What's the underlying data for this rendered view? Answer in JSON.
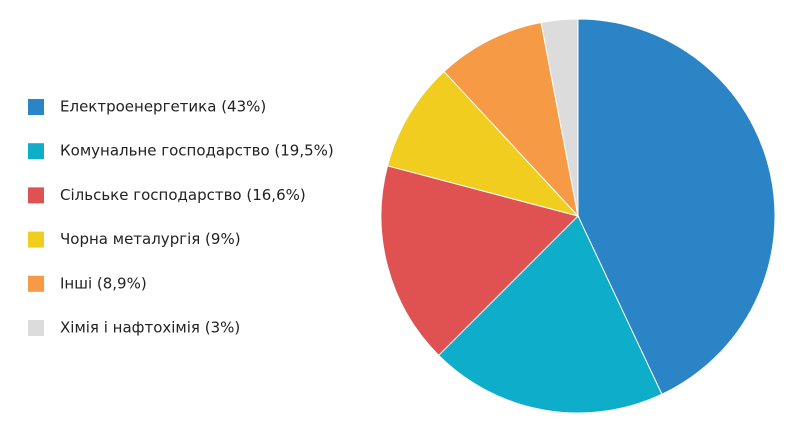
{
  "chart_data": {
    "type": "pie",
    "categories": [
      "Електроенергетика (43%)",
      "Комунальне господарство (19,5%)",
      "Сільське господарство (16,6%)",
      "Чорна металургія (9%)",
      "Інші (8,9%)",
      "Хімія і нафтохімія (3%)"
    ],
    "values": [
      43,
      19.5,
      16.6,
      9,
      8.9,
      3
    ],
    "colors": [
      "#2a84c6",
      "#0eaecb",
      "#e05252",
      "#f0cd1e",
      "#f79a45",
      "#dcdcdc"
    ],
    "legend": "left"
  }
}
